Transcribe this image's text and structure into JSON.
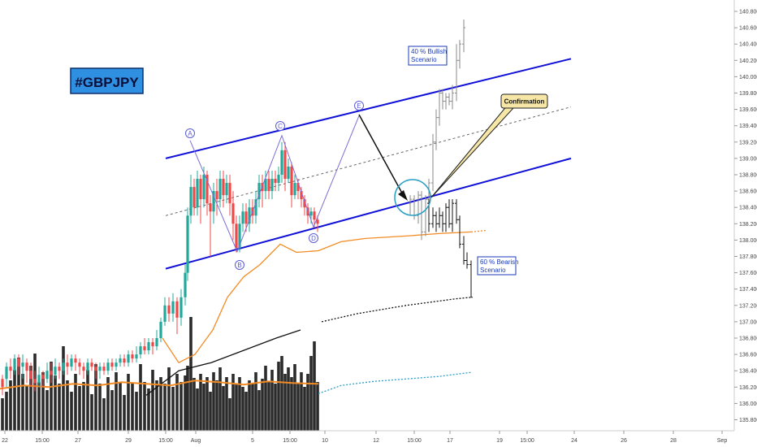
{
  "chart_data": {
    "type": "candlestick",
    "title": "#GBPJPY",
    "y_ticks": [
      "140.800",
      "140.600",
      "140.400",
      "140.200",
      "140.000",
      "139.800",
      "139.600",
      "139.400",
      "139.200",
      "139.000",
      "138.800",
      "138.600",
      "138.400",
      "138.200",
      "138.000",
      "137.800",
      "137.600",
      "137.400",
      "137.200",
      "137.000",
      "136.800",
      "136.600",
      "136.400",
      "136.200",
      "136.000",
      "135.800"
    ],
    "x_ticks": [
      "22",
      "15:00",
      "27",
      "29",
      "15:00",
      "Aug",
      "5",
      "15:00",
      "10",
      "12",
      "15:00",
      "17",
      "19",
      "15:00",
      "24",
      "26",
      "28",
      "Sep"
    ],
    "ylim": [
      135.7,
      140.9
    ],
    "wave_labels": [
      "A",
      "B",
      "C",
      "D",
      "E"
    ],
    "annotations": {
      "bullish": [
        "40 % Bullish",
        "Scenario"
      ],
      "bearish": [
        "60 % Bearish",
        "Scenario"
      ],
      "confirmation": "Confirmation"
    },
    "channel": {
      "upper": [
        [
          204,
          139.0
        ],
        [
          703,
          140.22
        ]
      ],
      "middle": [
        [
          204,
          138.3
        ],
        [
          703,
          139.63
        ]
      ],
      "lower": [
        [
          204,
          137.65
        ],
        [
          703,
          139.0
        ]
      ]
    },
    "wave_path": [
      [
        234,
        139.22
      ],
      [
        292,
        137.86
      ],
      [
        347,
        139.28
      ],
      [
        386,
        138.16
      ],
      [
        442,
        139.52
      ],
      [
        502,
        138.47
      ]
    ],
    "ma_orange": [
      [
        200,
        136.8
      ],
      [
        220,
        136.5
      ],
      [
        240,
        136.6
      ],
      [
        262,
        136.9
      ],
      [
        280,
        137.3
      ],
      [
        300,
        137.55
      ],
      [
        320,
        137.7
      ],
      [
        345,
        137.95
      ],
      [
        365,
        137.85
      ],
      [
        392,
        137.87
      ],
      [
        420,
        137.98
      ],
      [
        450,
        138.02
      ],
      [
        500,
        138.05
      ],
      [
        540,
        138.08
      ],
      [
        580,
        138.1
      ]
    ],
    "ma_black": [
      [
        180,
        136.1
      ],
      [
        220,
        136.4
      ],
      [
        260,
        136.5
      ],
      [
        300,
        136.65
      ],
      [
        340,
        136.8
      ],
      [
        370,
        136.9
      ],
      [
        396,
        137.0
      ],
      [
        440,
        137.1
      ],
      [
        500,
        137.2
      ],
      [
        560,
        137.28
      ],
      [
        580,
        137.3
      ]
    ],
    "ma_cyan": [
      [
        392,
        136.12
      ],
      [
        420,
        136.22
      ],
      [
        460,
        136.27
      ],
      [
        500,
        136.3
      ],
      [
        540,
        136.33
      ],
      [
        580,
        136.38
      ]
    ],
    "ma_volume_orange": [
      [
        0,
        136.18
      ],
      [
        30,
        136.22
      ],
      [
        60,
        136.2
      ],
      [
        90,
        136.24
      ],
      [
        120,
        136.22
      ],
      [
        150,
        136.26
      ],
      [
        180,
        136.24
      ],
      [
        210,
        136.22
      ],
      [
        240,
        136.28
      ],
      [
        270,
        136.26
      ],
      [
        300,
        136.23
      ],
      [
        330,
        136.27
      ],
      [
        360,
        136.25
      ],
      [
        392,
        136.24
      ]
    ],
    "candles": [
      [
        3,
        136.2,
        136.3,
        136.1,
        136.35,
        0
      ],
      [
        8,
        136.3,
        136.45,
        136.2,
        136.5,
        1
      ],
      [
        13,
        136.45,
        136.4,
        136.3,
        136.55,
        0
      ],
      [
        18,
        136.4,
        136.55,
        136.35,
        136.6,
        1
      ],
      [
        23,
        136.55,
        136.45,
        136.35,
        136.6,
        0
      ],
      [
        28,
        136.45,
        136.5,
        136.3,
        136.6,
        1
      ],
      [
        33,
        136.5,
        136.4,
        136.25,
        136.55,
        0
      ],
      [
        38,
        136.4,
        136.3,
        136.2,
        136.5,
        0
      ],
      [
        43,
        136.3,
        136.25,
        136.15,
        136.4,
        0
      ],
      [
        48,
        136.25,
        136.35,
        136.2,
        136.45,
        1
      ],
      [
        53,
        136.35,
        136.3,
        136.2,
        136.4,
        0
      ],
      [
        58,
        136.3,
        136.4,
        136.25,
        136.5,
        1
      ],
      [
        63,
        136.4,
        136.35,
        136.25,
        136.5,
        0
      ],
      [
        68,
        136.35,
        136.45,
        136.3,
        136.55,
        1
      ],
      [
        73,
        136.45,
        136.4,
        136.3,
        136.5,
        0
      ],
      [
        78,
        136.4,
        136.5,
        136.35,
        136.55,
        1
      ],
      [
        83,
        136.5,
        136.45,
        136.35,
        136.6,
        0
      ],
      [
        88,
        136.45,
        136.55,
        136.4,
        136.6,
        1
      ],
      [
        93,
        136.55,
        136.5,
        136.4,
        136.6,
        0
      ],
      [
        98,
        136.5,
        136.45,
        136.35,
        136.55,
        0
      ],
      [
        103,
        136.45,
        136.4,
        136.3,
        136.5,
        0
      ],
      [
        108,
        136.4,
        136.5,
        136.35,
        136.55,
        1
      ],
      [
        113,
        136.5,
        136.45,
        136.4,
        136.55,
        0
      ],
      [
        118,
        136.45,
        136.4,
        136.3,
        136.5,
        0
      ],
      [
        123,
        136.4,
        136.45,
        136.3,
        136.5,
        1
      ],
      [
        128,
        136.45,
        136.4,
        136.35,
        136.5,
        0
      ],
      [
        133,
        136.4,
        136.5,
        136.35,
        136.55,
        1
      ],
      [
        138,
        136.5,
        136.45,
        136.4,
        136.55,
        0
      ],
      [
        143,
        136.45,
        136.5,
        136.4,
        136.55,
        1
      ],
      [
        148,
        136.5,
        136.55,
        136.45,
        136.6,
        1
      ],
      [
        153,
        136.55,
        136.5,
        136.45,
        136.6,
        0
      ],
      [
        158,
        136.5,
        136.6,
        136.45,
        136.65,
        1
      ],
      [
        163,
        136.6,
        136.55,
        136.5,
        136.65,
        0
      ],
      [
        168,
        136.55,
        136.6,
        136.5,
        136.7,
        1
      ],
      [
        173,
        136.6,
        136.7,
        136.55,
        136.75,
        1
      ],
      [
        178,
        136.7,
        136.65,
        136.6,
        136.8,
        0
      ],
      [
        183,
        136.65,
        136.75,
        136.6,
        136.8,
        1
      ],
      [
        188,
        136.75,
        136.7,
        136.6,
        136.8,
        0
      ],
      [
        193,
        136.7,
        136.8,
        136.65,
        136.9,
        1
      ],
      [
        198,
        136.8,
        137.0,
        136.75,
        137.05,
        1
      ],
      [
        203,
        137.0,
        137.2,
        136.95,
        137.3,
        1
      ],
      [
        208,
        137.2,
        137.1,
        137.0,
        137.3,
        0
      ],
      [
        213,
        137.1,
        137.25,
        137.0,
        137.35,
        1
      ],
      [
        218,
        137.25,
        137.05,
        136.85,
        137.3,
        0
      ],
      [
        223,
        137.05,
        137.3,
        136.95,
        137.4,
        1
      ],
      [
        228,
        137.3,
        137.6,
        137.2,
        137.7,
        1
      ],
      [
        231,
        137.6,
        138.3,
        137.5,
        138.4,
        1
      ],
      [
        235,
        138.3,
        138.65,
        138.2,
        138.8,
        1
      ],
      [
        239,
        138.65,
        138.4,
        138.3,
        138.75,
        0
      ],
      [
        243,
        138.4,
        138.75,
        138.3,
        138.85,
        1
      ],
      [
        247,
        138.75,
        138.5,
        138.2,
        138.8,
        0
      ],
      [
        251,
        138.5,
        138.8,
        138.4,
        138.9,
        1
      ],
      [
        255,
        138.8,
        138.45,
        138.3,
        138.85,
        0
      ],
      [
        259,
        138.45,
        138.35,
        137.8,
        138.55,
        0
      ],
      [
        263,
        138.35,
        138.6,
        138.2,
        138.7,
        1
      ],
      [
        267,
        138.6,
        138.5,
        138.3,
        138.75,
        0
      ],
      [
        271,
        138.5,
        138.75,
        138.4,
        138.85,
        1
      ],
      [
        275,
        138.75,
        138.55,
        138.4,
        138.85,
        0
      ],
      [
        279,
        138.55,
        138.7,
        138.45,
        138.8,
        1
      ],
      [
        283,
        138.7,
        138.45,
        138.3,
        138.8,
        0
      ],
      [
        287,
        138.45,
        138.2,
        138.0,
        138.6,
        0
      ],
      [
        291,
        138.2,
        137.9,
        137.85,
        138.3,
        0
      ],
      [
        295,
        137.9,
        138.2,
        137.85,
        138.3,
        1
      ],
      [
        299,
        138.2,
        138.35,
        138.1,
        138.45,
        1
      ],
      [
        303,
        138.35,
        138.2,
        138.1,
        138.45,
        0
      ],
      [
        307,
        138.2,
        138.4,
        138.1,
        138.5,
        1
      ],
      [
        311,
        138.4,
        138.3,
        138.2,
        138.5,
        0
      ],
      [
        315,
        138.3,
        138.5,
        138.2,
        138.6,
        1
      ],
      [
        319,
        138.5,
        138.7,
        138.4,
        138.8,
        1
      ],
      [
        323,
        138.7,
        138.6,
        138.4,
        138.8,
        0
      ],
      [
        327,
        138.6,
        138.75,
        138.5,
        138.85,
        1
      ],
      [
        331,
        138.75,
        138.6,
        138.5,
        138.85,
        0
      ],
      [
        335,
        138.6,
        138.75,
        138.5,
        138.85,
        1
      ],
      [
        339,
        138.75,
        138.7,
        138.6,
        138.85,
        0
      ],
      [
        343,
        138.7,
        138.8,
        138.6,
        138.9,
        1
      ],
      [
        347,
        138.8,
        139.1,
        138.7,
        139.2,
        1
      ],
      [
        351,
        139.1,
        138.75,
        138.6,
        139.2,
        0
      ],
      [
        355,
        138.75,
        138.9,
        138.7,
        139.0,
        1
      ],
      [
        359,
        138.9,
        138.55,
        138.4,
        138.95,
        0
      ],
      [
        363,
        138.55,
        138.7,
        138.5,
        138.8,
        1
      ],
      [
        367,
        138.7,
        138.6,
        138.5,
        138.75,
        0
      ],
      [
        371,
        138.6,
        138.5,
        138.4,
        138.65,
        0
      ],
      [
        375,
        138.5,
        138.4,
        138.3,
        138.55,
        0
      ],
      [
        379,
        138.4,
        138.3,
        138.2,
        138.45,
        0
      ],
      [
        383,
        138.3,
        138.35,
        138.2,
        138.4,
        1
      ],
      [
        387,
        138.35,
        138.25,
        138.15,
        138.4,
        0
      ],
      [
        391,
        138.25,
        138.2,
        138.1,
        138.3,
        0
      ],
      [
        505,
        138.45,
        138.5,
        138.3,
        138.55,
        2
      ],
      [
        510,
        138.5,
        138.3,
        138.25,
        138.55,
        2
      ],
      [
        515,
        138.3,
        138.55,
        138.2,
        138.6,
        2
      ],
      [
        519,
        138.55,
        138.1,
        138.0,
        138.6,
        2
      ],
      [
        524,
        138.1,
        138.5,
        138.05,
        138.55,
        2
      ],
      [
        528,
        138.5,
        138.7,
        138.4,
        138.75,
        2
      ],
      [
        533,
        138.7,
        139.2,
        138.6,
        139.3,
        2
      ],
      [
        537,
        139.2,
        139.5,
        139.1,
        139.6,
        2
      ],
      [
        541,
        139.5,
        139.8,
        139.4,
        139.85,
        2
      ],
      [
        545,
        139.8,
        139.7,
        139.6,
        139.85,
        2
      ],
      [
        549,
        139.7,
        139.75,
        139.6,
        139.8,
        2
      ],
      [
        553,
        139.75,
        139.7,
        139.65,
        139.8,
        2
      ],
      [
        557,
        139.7,
        139.8,
        139.6,
        139.9,
        2
      ],
      [
        562,
        139.8,
        140.2,
        139.7,
        140.4,
        2
      ],
      [
        566,
        140.2,
        140.4,
        140.1,
        140.45,
        2
      ],
      [
        571,
        140.4,
        140.6,
        140.3,
        140.7,
        2
      ],
      [
        528,
        138.45,
        138.2,
        138.1,
        138.5,
        3
      ],
      [
        533,
        138.2,
        138.3,
        138.15,
        138.4,
        3
      ],
      [
        537,
        138.3,
        138.2,
        138.1,
        138.35,
        3
      ],
      [
        541,
        138.2,
        138.3,
        138.15,
        138.4,
        3
      ],
      [
        545,
        138.3,
        138.2,
        138.1,
        138.35,
        3
      ],
      [
        549,
        138.2,
        138.4,
        138.1,
        138.45,
        3
      ],
      [
        553,
        138.4,
        138.2,
        138.15,
        138.5,
        3
      ],
      [
        557,
        138.2,
        138.45,
        138.1,
        138.5,
        3
      ],
      [
        562,
        138.45,
        138.25,
        138.2,
        138.5,
        3
      ],
      [
        566,
        138.25,
        137.95,
        137.9,
        138.3,
        3
      ],
      [
        571,
        137.95,
        137.75,
        137.7,
        138.05,
        3
      ],
      [
        575,
        137.75,
        137.7,
        137.65,
        137.85,
        3
      ],
      [
        580,
        137.7,
        137.3,
        137.3,
        137.75,
        3
      ]
    ],
    "volume": [
      [
        3,
        40
      ],
      [
        8,
        48
      ],
      [
        13,
        62
      ],
      [
        18,
        75
      ],
      [
        23,
        90
      ],
      [
        28,
        70
      ],
      [
        33,
        55
      ],
      [
        38,
        80
      ],
      [
        43,
        95
      ],
      [
        48,
        60
      ],
      [
        53,
        72
      ],
      [
        58,
        50
      ],
      [
        63,
        85
      ],
      [
        68,
        68
      ],
      [
        73,
        58
      ],
      [
        78,
        104
      ],
      [
        83,
        62
      ],
      [
        88,
        48
      ],
      [
        93,
        70
      ],
      [
        98,
        55
      ],
      [
        103,
        60
      ],
      [
        108,
        75
      ],
      [
        113,
        45
      ],
      [
        118,
        82
      ],
      [
        123,
        58
      ],
      [
        128,
        40
      ],
      [
        133,
        66
      ],
      [
        138,
        50
      ],
      [
        143,
        72
      ],
      [
        148,
        60
      ],
      [
        153,
        44
      ],
      [
        158,
        70
      ],
      [
        163,
        58
      ],
      [
        168,
        48
      ],
      [
        173,
        82
      ],
      [
        178,
        60
      ],
      [
        183,
        52
      ],
      [
        188,
        75
      ],
      [
        193,
        62
      ],
      [
        198,
        66
      ],
      [
        203,
        58
      ],
      [
        208,
        78
      ],
      [
        213,
        54
      ],
      [
        218,
        70
      ],
      [
        223,
        60
      ],
      [
        228,
        68
      ],
      [
        231,
        80
      ],
      [
        235,
        140
      ],
      [
        239,
        65
      ],
      [
        243,
        52
      ],
      [
        247,
        70
      ],
      [
        251,
        58
      ],
      [
        255,
        66
      ],
      [
        259,
        48
      ],
      [
        263,
        72
      ],
      [
        267,
        62
      ],
      [
        271,
        78
      ],
      [
        275,
        55
      ],
      [
        279,
        66
      ],
      [
        283,
        40
      ],
      [
        287,
        70
      ],
      [
        291,
        58
      ],
      [
        295,
        66
      ],
      [
        299,
        54
      ],
      [
        303,
        48
      ],
      [
        307,
        62
      ],
      [
        311,
        58
      ],
      [
        315,
        72
      ],
      [
        319,
        50
      ],
      [
        323,
        64
      ],
      [
        327,
        80
      ],
      [
        331,
        60
      ],
      [
        335,
        75
      ],
      [
        339,
        58
      ],
      [
        343,
        85
      ],
      [
        347,
        92
      ],
      [
        351,
        70
      ],
      [
        355,
        78
      ],
      [
        359,
        66
      ],
      [
        363,
        82
      ],
      [
        367,
        58
      ],
      [
        371,
        72
      ],
      [
        375,
        54
      ],
      [
        379,
        70
      ],
      [
        383,
        92
      ],
      [
        387,
        110
      ],
      [
        391,
        60
      ]
    ]
  }
}
